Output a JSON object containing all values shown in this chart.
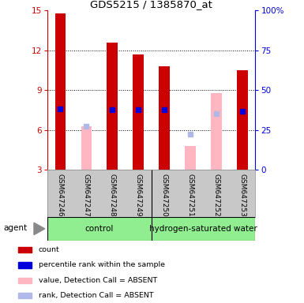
{
  "title": "GDS5215 / 1385870_at",
  "samples": [
    "GSM647246",
    "GSM647247",
    "GSM647248",
    "GSM647249",
    "GSM647250",
    "GSM647251",
    "GSM647252",
    "GSM647253"
  ],
  "ylim_left": [
    3,
    15
  ],
  "ylim_right": [
    0,
    100
  ],
  "yticks_left": [
    3,
    6,
    9,
    12,
    15
  ],
  "yticks_right": [
    0,
    25,
    50,
    75,
    100
  ],
  "ytick_labels_right": [
    "0",
    "25",
    "50",
    "75",
    "100%"
  ],
  "bar_data": [
    {
      "sample": "GSM647246",
      "red_val": 14.8,
      "blue_val": 7.6,
      "pink_val": null,
      "light_blue_val": null
    },
    {
      "sample": "GSM647247",
      "red_val": null,
      "blue_val": null,
      "pink_val": 6.3,
      "light_blue_val": 6.3
    },
    {
      "sample": "GSM647248",
      "red_val": 12.6,
      "blue_val": 7.5,
      "pink_val": null,
      "light_blue_val": null
    },
    {
      "sample": "GSM647249",
      "red_val": 11.7,
      "blue_val": 7.5,
      "pink_val": null,
      "light_blue_val": null
    },
    {
      "sample": "GSM647250",
      "red_val": 10.8,
      "blue_val": 7.5,
      "pink_val": null,
      "light_blue_val": null
    },
    {
      "sample": "GSM647251",
      "red_val": null,
      "blue_val": null,
      "pink_val": 4.8,
      "light_blue_val": 5.7
    },
    {
      "sample": "GSM647252",
      "red_val": null,
      "blue_val": null,
      "pink_val": 8.8,
      "light_blue_val": 7.2
    },
    {
      "sample": "GSM647253",
      "red_val": 10.5,
      "blue_val": 7.4,
      "pink_val": null,
      "light_blue_val": null
    }
  ],
  "red_color": "#cc0000",
  "blue_color": "#0000dd",
  "pink_color": "#ffb6c1",
  "light_blue_color": "#b0b8e8",
  "bar_width": 0.4,
  "bg_color": "#c8c8c8",
  "plot_bg": "#ffffff",
  "left_ycolor": "#cc0000",
  "right_ycolor": "#0000dd",
  "group_color": "#90ee90",
  "group_control_label": "control",
  "group_hw_label": "hydrogen-saturated water",
  "agent_label": "agent",
  "gridline_ticks": [
    6,
    9,
    12
  ],
  "legend_items": [
    {
      "label": "count",
      "color": "#cc0000"
    },
    {
      "label": "percentile rank within the sample",
      "color": "#0000dd"
    },
    {
      "label": "value, Detection Call = ABSENT",
      "color": "#ffb6c1"
    },
    {
      "label": "rank, Detection Call = ABSENT",
      "color": "#b0b8e8"
    }
  ]
}
